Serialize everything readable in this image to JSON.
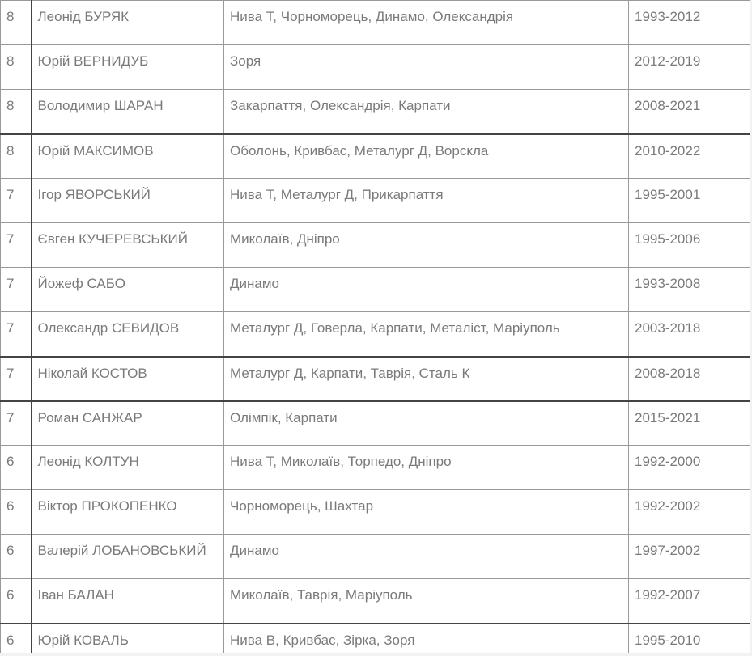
{
  "rows": [
    {
      "n": "8",
      "name": "Леонід БУРЯК",
      "clubs": "Нива Т, Чорноморець, Динамо, Олександрія",
      "years": "1993-2012"
    },
    {
      "n": "8",
      "name": "Юрій ВЕРНИДУБ",
      "clubs": "Зоря",
      "years": "2012-2019"
    },
    {
      "n": "8",
      "name": "Володимир ШАРАН",
      "clubs": "Закарпаття, Олександрія, Карпати",
      "years": "2008-2021"
    },
    {
      "n": "8",
      "name": "Юрій МАКСИМОВ",
      "clubs": "Оболонь, Кривбас, Металург Д, Ворскла",
      "years": "2010-2022"
    },
    {
      "n": "7",
      "name": "Ігор ЯВОРСЬКИЙ",
      "clubs": "Нива Т, Металург Д, Прикарпаття",
      "years": "1995-2001"
    },
    {
      "n": "7",
      "name": "Євген КУЧЕРЕВСЬКИЙ",
      "clubs": "Миколаїв, Дніпро",
      "years": "1995-2006"
    },
    {
      "n": "7",
      "name": "Йожеф САБО",
      "clubs": "Динамо",
      "years": "1993-2008"
    },
    {
      "n": "7",
      "name": "Олександр СЕВИДОВ",
      "clubs": "Металург Д, Говерла, Карпати, Металіст, Маріуполь",
      "years": "2003-2018"
    },
    {
      "n": "7",
      "name": "Ніколай КОСТОВ",
      "clubs": "Металург Д, Карпати, Таврія, Сталь К",
      "years": "2008-2018"
    },
    {
      "n": "7",
      "name": "Роман САНЖАР",
      "clubs": "Олімпік, Карпати",
      "years": "2015-2021"
    },
    {
      "n": "6",
      "name": "Леонід КОЛТУН",
      "clubs": "Нива Т, Миколаїв, Торпедо, Дніпро",
      "years": "1992-2000"
    },
    {
      "n": "6",
      "name": "Віктор ПРОКОПЕНКО",
      "clubs": "Чорноморець, Шахтар",
      "years": "1992-2002"
    },
    {
      "n": "6",
      "name": "Валерій ЛОБАНОВСЬКИЙ",
      "clubs": "Динамо",
      "years": "1997-2002"
    },
    {
      "n": "6",
      "name": "Іван БАЛАН",
      "clubs": "Миколаїв, Таврія, Маріуполь",
      "years": "1992-2007"
    },
    {
      "n": "6",
      "name": "Юрій КОВАЛЬ",
      "clubs": "Нива В, Кривбас, Зірка, Зоря",
      "years": "1995-2010"
    }
  ]
}
